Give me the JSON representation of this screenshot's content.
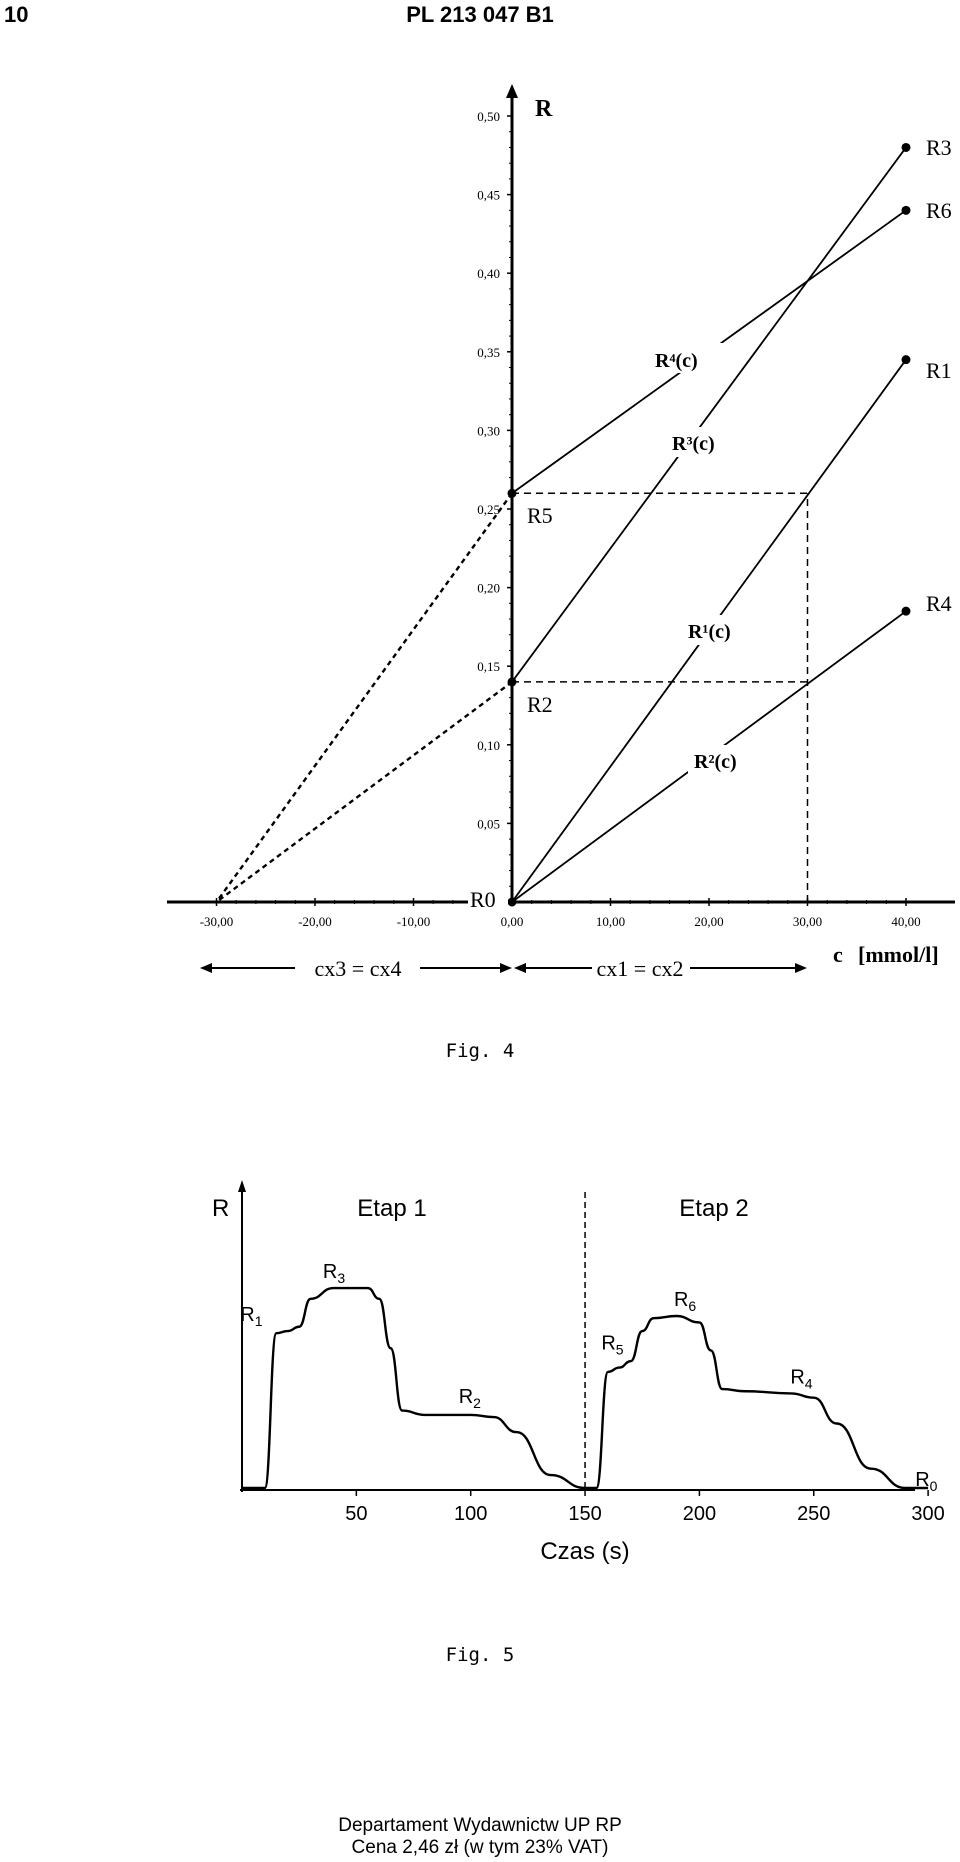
{
  "header": {
    "page_number": "10",
    "doc_id": "PL 213 047 B1"
  },
  "fig4": {
    "caption": "Fig. 4",
    "y_axis_label": "R",
    "x_axis_label": "c",
    "x_unit": "[mmol/l]",
    "left_span_label": "cx3 = cx4",
    "right_span_label": "cx1 = cx2",
    "curve_labels": {
      "r1": "R¹(c)",
      "r2": "R²(c)",
      "r3": "R³(c)",
      "r4": "R⁴(c)"
    },
    "point_labels": {
      "r0": "R0",
      "r1": "R1",
      "r2": "R2",
      "r3": "R3",
      "r4": "R4",
      "r5": "R5",
      "r6": "R6"
    }
  },
  "fig5": {
    "caption": "Fig. 5",
    "y_axis_label": "R",
    "x_axis_label": "Czas (s)",
    "stage1": "Etap 1",
    "stage2": "Etap 2",
    "point_labels": {
      "r0": "R0",
      "r1": "R1",
      "r2": "R2",
      "r3": "R3",
      "r4": "R4",
      "r5": "R5",
      "r6": "R6"
    }
  },
  "footer": {
    "line1": "Departament Wydawnictw UP RP",
    "line2": "Cena 2,46 zł (w tym 23% VAT)"
  },
  "chart_data": [
    {
      "type": "line",
      "x_ticks": [
        "-30,00",
        "-20,00",
        "-10,00",
        "0,00",
        "10,00",
        "20,00",
        "30,00",
        "40,00"
      ],
      "y_ticks": [
        "0,05",
        "0,10",
        "0,15",
        "0,20",
        "0,25",
        "0,30",
        "0,35",
        "0,40",
        "0,45",
        "0,50"
      ],
      "xlim": [
        -30,
        40
      ],
      "ylim": [
        0,
        0.5
      ],
      "series": [
        {
          "name": "R¹(c)",
          "x": [
            0,
            40
          ],
          "y": [
            0,
            0.345
          ]
        },
        {
          "name": "R²(c)",
          "x": [
            0,
            40
          ],
          "y": [
            0,
            0.185
          ]
        },
        {
          "name": "R³(c)",
          "x": [
            0,
            40
          ],
          "y": [
            0.14,
            0.48
          ]
        },
        {
          "name": "R⁴(c)",
          "x": [
            0,
            40
          ],
          "y": [
            0.26,
            0.44
          ]
        }
      ],
      "points": [
        {
          "label": "R0",
          "x": 0,
          "y": 0
        },
        {
          "label": "R1",
          "x": 40,
          "y": 0.345
        },
        {
          "label": "R2",
          "x": 0,
          "y": 0.14
        },
        {
          "label": "R3",
          "x": 40,
          "y": 0.48
        },
        {
          "label": "R4",
          "x": 40,
          "y": 0.185
        },
        {
          "label": "R5",
          "x": 0,
          "y": 0.26
        },
        {
          "label": "R6",
          "x": 40,
          "y": 0.44
        }
      ],
      "extrapolations": [
        {
          "from": [
            0,
            0.26
          ],
          "to": [
            -30,
            0
          ]
        },
        {
          "from": [
            0,
            0.14
          ],
          "to": [
            -30,
            0
          ]
        }
      ],
      "guides": [
        {
          "from": [
            0,
            0.26
          ],
          "to": [
            30,
            0.26
          ]
        },
        {
          "from": [
            0,
            0.14
          ],
          "to": [
            30,
            0.14
          ]
        },
        {
          "from": [
            30,
            0
          ],
          "to": [
            30,
            0.26
          ]
        }
      ]
    },
    {
      "type": "line",
      "x_ticks": [
        "50",
        "100",
        "150",
        "200",
        "250",
        "300"
      ],
      "xlim": [
        0,
        300
      ],
      "ylim": [
        0,
        1
      ],
      "stage_boundary_x": 150,
      "series": [
        {
          "x": [
            0,
            10,
            15,
            20,
            25,
            30,
            40,
            55,
            60,
            65,
            70,
            80,
            100,
            110,
            120,
            135,
            150,
            155,
            160,
            165,
            170,
            175,
            180,
            190,
            200,
            205,
            210,
            220,
            240,
            250,
            260,
            275,
            290,
            300
          ],
          "y": [
            0,
            0,
            0.72,
            0.73,
            0.75,
            0.88,
            0.93,
            0.93,
            0.88,
            0.65,
            0.36,
            0.34,
            0.34,
            0.33,
            0.26,
            0.06,
            0,
            0,
            0.54,
            0.56,
            0.59,
            0.73,
            0.79,
            0.8,
            0.77,
            0.64,
            0.46,
            0.45,
            0.44,
            0.42,
            0.3,
            0.09,
            0,
            0
          ]
        }
      ],
      "points": [
        {
          "label": "R1",
          "x": 15,
          "y": 0.72
        },
        {
          "label": "R3",
          "x": 45,
          "y": 0.93
        },
        {
          "label": "R2",
          "x": 100,
          "y": 0.34
        },
        {
          "label": "R5",
          "x": 165,
          "y": 0.56
        },
        {
          "label": "R6",
          "x": 195,
          "y": 0.8
        },
        {
          "label": "R4",
          "x": 245,
          "y": 0.43
        },
        {
          "label": "R0",
          "x": 290,
          "y": 0
        }
      ]
    }
  ]
}
